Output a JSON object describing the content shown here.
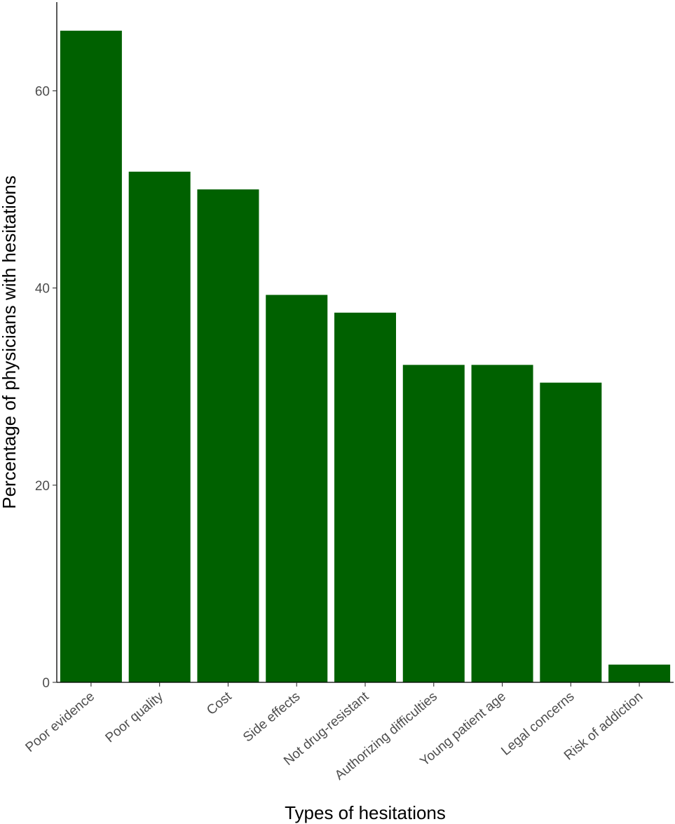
{
  "chart_data": {
    "type": "bar",
    "categories": [
      "Poor evidence",
      "Poor quality",
      "Cost",
      "Side effects",
      "Not drug-resistant",
      "Authorizing difficulties",
      "Young patient age",
      "Legal concerns",
      "Risk of addiction"
    ],
    "values": [
      66.1,
      51.8,
      50.0,
      39.3,
      37.5,
      32.2,
      32.2,
      30.4,
      1.8
    ],
    "xlabel": "Types of hesitations",
    "ylabel": "Percentage of physicians with hesitations",
    "ylim": [
      0,
      69
    ],
    "yticks": [
      0,
      20,
      40,
      60
    ],
    "grid": false,
    "bar_color": "#006100"
  }
}
